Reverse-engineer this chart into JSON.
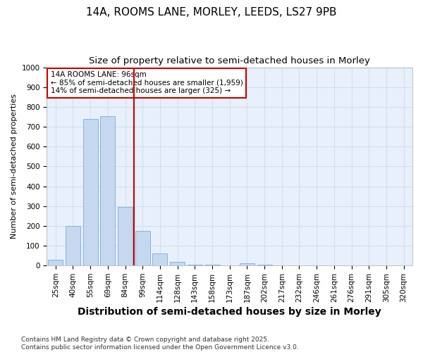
{
  "title_line1": "14A, ROOMS LANE, MORLEY, LEEDS, LS27 9PB",
  "title_line2": "Size of property relative to semi-detached houses in Morley",
  "xlabel": "Distribution of semi-detached houses by size in Morley",
  "ylabel": "Number of semi-detached properties",
  "categories": [
    "25sqm",
    "40sqm",
    "55sqm",
    "69sqm",
    "84sqm",
    "99sqm",
    "114sqm",
    "128sqm",
    "143sqm",
    "158sqm",
    "173sqm",
    "187sqm",
    "202sqm",
    "217sqm",
    "232sqm",
    "246sqm",
    "261sqm",
    "276sqm",
    "291sqm",
    "305sqm",
    "320sqm"
  ],
  "values": [
    30,
    200,
    740,
    755,
    295,
    175,
    60,
    20,
    5,
    5,
    0,
    10,
    5,
    0,
    0,
    2,
    0,
    0,
    0,
    0,
    0
  ],
  "bar_color": "#c5d8f0",
  "bar_edge_color": "#7aadd4",
  "grid_color": "#d0e0f0",
  "background_color": "#e8f0fb",
  "fig_background": "#ffffff",
  "vline_x": 4.5,
  "vline_color": "#cc0000",
  "annotation_title": "14A ROOMS LANE: 96sqm",
  "annotation_line1": "← 85% of semi-detached houses are smaller (1,959)",
  "annotation_line2": "14% of semi-detached houses are larger (325) →",
  "annotation_box_color": "#ffffff",
  "annotation_box_edge": "#cc0000",
  "footer_line1": "Contains HM Land Registry data © Crown copyright and database right 2025.",
  "footer_line2": "Contains public sector information licensed under the Open Government Licence v3.0.",
  "ylim": [
    0,
    1000
  ],
  "yticks": [
    0,
    100,
    200,
    300,
    400,
    500,
    600,
    700,
    800,
    900,
    1000
  ],
  "title1_fontsize": 11,
  "title2_fontsize": 9.5,
  "xlabel_fontsize": 10,
  "ylabel_fontsize": 8,
  "tick_fontsize": 7.5,
  "footer_fontsize": 6.5,
  "ann_fontsize": 7.5
}
